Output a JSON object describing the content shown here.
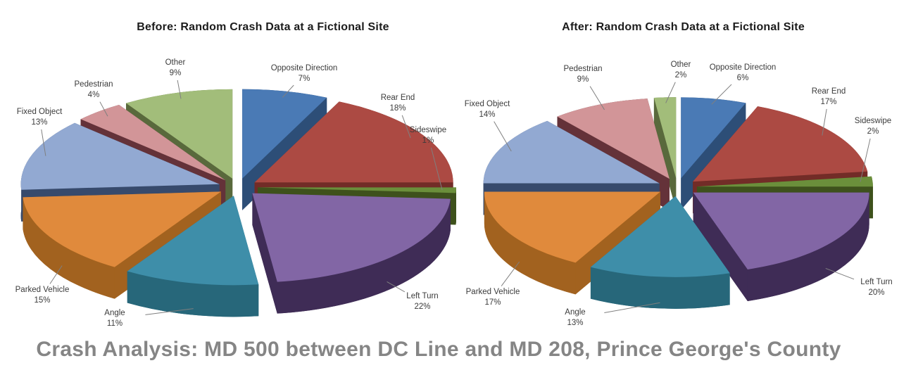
{
  "figure": {
    "caption": "Crash Analysis: MD 500 between DC Line and MD 208, Prince George's County",
    "caption_color": "#858585",
    "background_color": "#ffffff"
  },
  "chart_data": [
    {
      "type": "pie",
      "style": "3d-exploded",
      "title": "Before: Random Crash Data at a Fictional Site",
      "start_angle_deg": -90,
      "direction": "clockwise",
      "legend_position": "none",
      "labels": [
        "Opposite Direction",
        "Rear End",
        "Sideswipe",
        "Left Turn",
        "Angle",
        "Parked Vehicle",
        "Fixed Object",
        "Pedestrian",
        "Other"
      ],
      "values": [
        7,
        18,
        1,
        22,
        11,
        15,
        13,
        4,
        9
      ],
      "percent_labels": [
        "7%",
        "18%",
        "1%",
        "22%",
        "11%",
        "15%",
        "13%",
        "4%",
        "9%"
      ],
      "colors": [
        "#4A7AB5",
        "#AC4A43",
        "#6B8F3B",
        "#8266A5",
        "#3E8EA9",
        "#E08A3C",
        "#92A9D2",
        "#D29598",
        "#A2BD7A"
      ],
      "wall_colors": [
        "#2D4E77",
        "#722C27",
        "#3E511C",
        "#3F2C56",
        "#27677A",
        "#A2621F",
        "#374A6C",
        "#643239",
        "#59693C"
      ]
    },
    {
      "type": "pie",
      "style": "3d-exploded",
      "title": "After: Random Crash Data at a Fictional Site",
      "start_angle_deg": -90,
      "direction": "clockwise",
      "legend_position": "none",
      "labels": [
        "Opposite Direction",
        "Rear End",
        "Sideswipe",
        "Left Turn",
        "Angle",
        "Parked Vehicle",
        "Fixed Object",
        "Pedestrian",
        "Other"
      ],
      "values": [
        6,
        17,
        2,
        20,
        13,
        17,
        14,
        9,
        2
      ],
      "percent_labels": [
        "6%",
        "17%",
        "2%",
        "20%",
        "13%",
        "17%",
        "14%",
        "9%",
        "2%"
      ],
      "colors": [
        "#4A7AB5",
        "#AC4A43",
        "#6B8F3B",
        "#8266A5",
        "#3E8EA9",
        "#E08A3C",
        "#92A9D2",
        "#D29598",
        "#A2BD7A"
      ],
      "wall_colors": [
        "#2D4E77",
        "#722C27",
        "#3E511C",
        "#3F2C56",
        "#27677A",
        "#A2621F",
        "#374A6C",
        "#643239",
        "#59693C"
      ]
    }
  ]
}
